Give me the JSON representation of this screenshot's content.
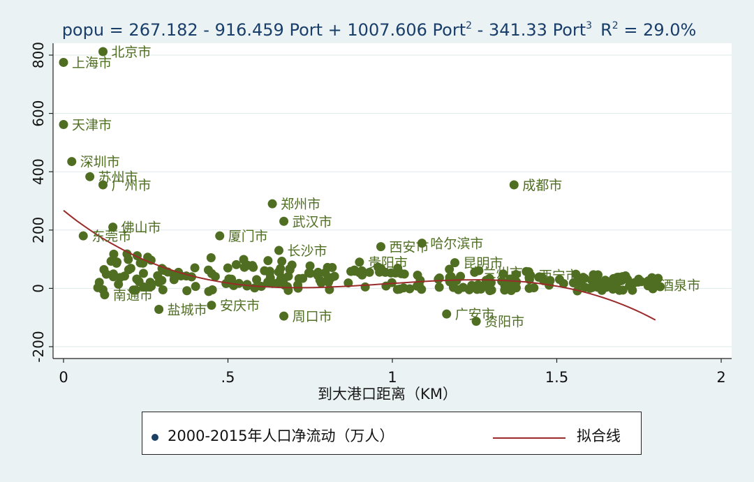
{
  "chart_data": {
    "type": "scatter",
    "title": "popu = 267.182 - 916.459 Port + 1007.606 Port",
    "title_parts": {
      "head": "popu = 267.182 - 916.459 Port + 1007.606 Port",
      "sup2": "2",
      "mid": " - 341.33 Port",
      "sup3": "3",
      "r": "R",
      "rsup": "2",
      "tail": " = 29.0%"
    },
    "xlabel": "到大港口距离（KM）",
    "ylabel": "",
    "xlim": [
      0,
      2
    ],
    "ylim": [
      -200,
      800
    ],
    "xticks": [
      {
        "value": 0,
        "label": "0"
      },
      {
        "value": 0.5,
        "label": ".5"
      },
      {
        "value": 1,
        "label": "1"
      },
      {
        "value": 1.5,
        "label": "1.5"
      },
      {
        "value": 2,
        "label": "2"
      }
    ],
    "yticks": [
      {
        "value": -200,
        "label": "-200"
      },
      {
        "value": 0,
        "label": "0"
      },
      {
        "value": 200,
        "label": "200"
      },
      {
        "value": 400,
        "label": "400"
      },
      {
        "value": 600,
        "label": "600"
      },
      {
        "value": 800,
        "label": "800"
      }
    ],
    "grid": true,
    "legend_position": "bottom",
    "series": [
      {
        "name": "2000-2015年人口净流动（万人）",
        "kind": "scatter",
        "labeled_points": [
          {
            "label": "北京市",
            "x": 0.12,
            "y": 812
          },
          {
            "label": "上海市",
            "x": 0.0,
            "y": 775
          },
          {
            "label": "天津市",
            "x": 0.0,
            "y": 562
          },
          {
            "label": "深圳市",
            "x": 0.025,
            "y": 435
          },
          {
            "label": "苏州市",
            "x": 0.08,
            "y": 383
          },
          {
            "label": "广州市",
            "x": 0.12,
            "y": 355
          },
          {
            "label": "成都市",
            "x": 1.37,
            "y": 355
          },
          {
            "label": "郑州市",
            "x": 0.635,
            "y": 290
          },
          {
            "label": "武汉市",
            "x": 0.67,
            "y": 230
          },
          {
            "label": "佛山市",
            "x": 0.15,
            "y": 210
          },
          {
            "label": "东莞市",
            "x": 0.06,
            "y": 180
          },
          {
            "label": "厦门市",
            "x": 0.475,
            "y": 180
          },
          {
            "label": "长沙市",
            "x": 0.655,
            "y": 130
          },
          {
            "label": "西安市",
            "x": 0.965,
            "y": 143
          },
          {
            "label": "哈尔滨市",
            "x": 1.09,
            "y": 155
          },
          {
            "label": "昆明市",
            "x": 1.19,
            "y": 88
          },
          {
            "label": "贵阳市",
            "x": 0.9,
            "y": 90
          },
          {
            "label": "兰州市",
            "x": 1.25,
            "y": 55
          },
          {
            "label": "西宁市",
            "x": 1.42,
            "y": 45
          },
          {
            "label": "酒泉市",
            "x": 1.79,
            "y": 12
          },
          {
            "label": "盐城市",
            "x": 0.29,
            "y": -72
          },
          {
            "label": "安庆市",
            "x": 0.45,
            "y": -58
          },
          {
            "label": "周口市",
            "x": 0.67,
            "y": -95
          },
          {
            "label": "广安市",
            "x": 1.165,
            "y": -88
          },
          {
            "label": "资阳市",
            "x": 1.255,
            "y": -113
          },
          {
            "label": "南通市",
            "x": 0.125,
            "y": -22
          }
        ],
        "point_count": 250
      },
      {
        "name": "拟合线",
        "kind": "line",
        "equation": {
          "c0": 267.182,
          "c1": -916.459,
          "c2": 1007.606,
          "c3": -341.33
        },
        "x_range": [
          0,
          1.8
        ]
      }
    ]
  },
  "legend": {
    "scatter_label": "2000-2015年人口净流动（万人）",
    "fit_label": "拟合线"
  },
  "colors": {
    "background": "#eaf2f3",
    "plot_bg": "#ffffff",
    "point": "#4f6e22",
    "label": "#4f6e22",
    "fit_line": "#9b2a2a",
    "title": "#1a3e6a",
    "legend_dot": "#1b3f63"
  }
}
